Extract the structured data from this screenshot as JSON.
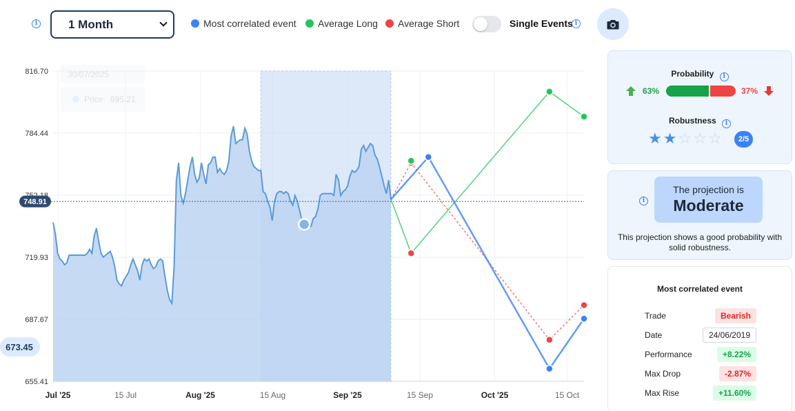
{
  "toolbar": {
    "period": "1 Month",
    "legend": [
      {
        "label": "Most correlated event",
        "color": "#3b82f6"
      },
      {
        "label": "Average Long",
        "color": "#22c55e"
      },
      {
        "label": "Average Short",
        "color": "#ef4444"
      }
    ],
    "single_events_label": "Single Events",
    "single_events_on": false,
    "icons": {
      "info": "info-icon",
      "camera": "camera-icon"
    }
  },
  "chart_data": {
    "type": "line",
    "y_ticks": [
      "816.70",
      "784.44",
      "752.18",
      "719.93",
      "687.67",
      "655.41"
    ],
    "ylim": [
      655.41,
      816.7
    ],
    "x_labels": [
      {
        "label": "Jul '25",
        "major": true
      },
      {
        "label": "15 Jul",
        "major": false
      },
      {
        "label": "Aug '25",
        "major": true
      },
      {
        "label": "15 Aug",
        "major": false
      },
      {
        "label": "Sep '25",
        "major": true
      },
      {
        "label": "15 Sep",
        "major": false
      },
      {
        "label": "Oct '25",
        "major": true
      },
      {
        "label": "15 Oct",
        "major": false
      }
    ],
    "current_price_label": "748.91",
    "current_price": 748.91,
    "hover_price_label": "673.45",
    "tooltip": {
      "date": "30/07/2025",
      "price_label": "Price:",
      "price": "695.21"
    },
    "price_series": {
      "name": "Price",
      "color": "#5b9bd5",
      "points": [
        [
          0,
          738
        ],
        [
          1,
          732
        ],
        [
          2,
          722
        ],
        [
          3,
          719
        ],
        [
          4,
          718
        ],
        [
          5,
          716
        ],
        [
          6,
          717
        ],
        [
          7,
          721
        ],
        [
          8,
          721
        ],
        [
          9,
          721
        ],
        [
          10,
          721
        ],
        [
          11,
          721
        ],
        [
          12,
          721
        ],
        [
          13,
          721
        ],
        [
          14,
          721
        ],
        [
          15,
          722
        ],
        [
          16,
          724
        ],
        [
          17,
          722
        ],
        [
          18,
          731
        ],
        [
          19,
          735
        ],
        [
          20,
          728
        ],
        [
          21,
          722
        ],
        [
          22,
          720
        ],
        [
          23,
          721
        ],
        [
          24,
          722
        ],
        [
          25,
          723
        ],
        [
          26,
          720
        ],
        [
          27,
          715
        ],
        [
          28,
          708
        ],
        [
          29,
          706
        ],
        [
          30,
          705
        ],
        [
          31,
          708
        ],
        [
          32,
          710
        ],
        [
          33,
          712
        ],
        [
          34,
          716
        ],
        [
          35,
          719
        ],
        [
          36,
          716
        ],
        [
          37,
          713
        ],
        [
          38,
          708
        ],
        [
          39,
          716
        ],
        [
          40,
          719
        ],
        [
          41,
          718
        ],
        [
          42,
          719
        ],
        [
          43,
          716
        ],
        [
          44,
          714
        ],
        [
          45,
          715
        ],
        [
          46,
          718
        ],
        [
          47,
          719
        ],
        [
          48,
          718
        ],
        [
          49,
          710
        ],
        [
          50,
          703
        ],
        [
          51,
          698
        ],
        [
          52,
          696
        ],
        [
          53,
          715
        ],
        [
          54,
          760
        ],
        [
          55,
          769
        ],
        [
          56,
          752
        ],
        [
          57,
          748
        ],
        [
          58,
          753
        ],
        [
          59,
          760
        ],
        [
          60,
          767
        ],
        [
          61,
          772
        ],
        [
          62,
          763
        ],
        [
          63,
          759
        ],
        [
          64,
          761
        ],
        [
          65,
          769
        ],
        [
          66,
          763
        ],
        [
          67,
          758
        ],
        [
          68,
          768
        ],
        [
          69,
          769
        ],
        [
          70,
          772
        ],
        [
          71,
          772
        ],
        [
          72,
          764
        ],
        [
          73,
          766
        ],
        [
          74,
          764
        ],
        [
          75,
          763
        ],
        [
          76,
          765
        ],
        [
          77,
          770
        ],
        [
          78,
          783
        ],
        [
          79,
          788
        ],
        [
          80,
          779
        ],
        [
          81,
          780
        ],
        [
          82,
          781
        ],
        [
          83,
          781
        ],
        [
          84,
          787
        ],
        [
          85,
          784
        ],
        [
          86,
          775
        ],
        [
          87,
          770
        ],
        [
          88,
          767
        ],
        [
          89,
          766
        ],
        [
          90,
          765
        ],
        [
          91,
          765
        ],
        [
          92,
          754
        ],
        [
          93,
          753
        ],
        [
          94,
          749
        ],
        [
          95,
          746
        ],
        [
          96,
          739
        ],
        [
          97,
          749
        ],
        [
          98,
          753
        ],
        [
          99,
          754
        ],
        [
          100,
          754
        ],
        [
          101,
          753
        ],
        [
          102,
          754
        ],
        [
          103,
          753
        ],
        [
          104,
          749
        ],
        [
          105,
          747
        ],
        [
          106,
          752
        ],
        [
          107,
          749
        ],
        [
          108,
          744
        ],
        [
          109,
          739
        ],
        [
          110,
          738
        ],
        [
          111,
          737
        ],
        [
          112,
          736
        ],
        [
          113,
          736
        ],
        [
          114,
          740
        ],
        [
          115,
          741
        ],
        [
          116,
          745
        ],
        [
          117,
          752
        ],
        [
          118,
          753
        ],
        [
          119,
          753
        ],
        [
          120,
          753
        ],
        [
          121,
          753
        ],
        [
          122,
          753
        ],
        [
          123,
          752
        ],
        [
          124,
          763
        ],
        [
          125,
          760
        ],
        [
          126,
          752
        ],
        [
          127,
          754
        ],
        [
          128,
          755
        ],
        [
          129,
          757
        ],
        [
          130,
          762
        ],
        [
          131,
          765
        ],
        [
          132,
          764
        ],
        [
          133,
          765
        ],
        [
          134,
          767
        ],
        [
          135,
          776
        ],
        [
          136,
          778
        ],
        [
          137,
          775
        ],
        [
          138,
          777
        ],
        [
          139,
          779
        ],
        [
          140,
          778
        ],
        [
          141,
          773
        ],
        [
          142,
          771
        ],
        [
          143,
          767
        ],
        [
          144,
          762
        ],
        [
          145,
          757
        ],
        [
          146,
          753
        ],
        [
          147,
          760
        ],
        [
          148,
          750
        ]
      ],
      "highlight_point": [
        110,
        737
      ]
    },
    "projection": {
      "most_correlated_event": {
        "color": "#3b82f6",
        "points": [
          [
            148,
            750
          ],
          [
            161,
            772
          ],
          [
            203,
            662
          ],
          [
            215,
            688
          ]
        ]
      },
      "average_long": {
        "color": "#22c55e",
        "points": [
          [
            148,
            750
          ],
          [
            155,
            722
          ],
          [
            203,
            806
          ],
          [
            215,
            793
          ]
        ],
        "marker_start": [
          155,
          770
        ]
      },
      "average_short": {
        "color": "#ef4444",
        "points": [
          [
            148,
            750
          ],
          [
            155,
            769
          ],
          [
            203,
            677
          ],
          [
            215,
            695
          ]
        ],
        "marker_start": [
          155,
          722
        ]
      }
    },
    "highlight_window": [
      91,
      148
    ]
  },
  "probability": {
    "title": "Probability",
    "up_pct": "63%",
    "down_pct": "37%",
    "up_fraction": 0.63
  },
  "robustness": {
    "title": "Robustness",
    "score": "2/5",
    "filled_stars": 2,
    "total_stars": 5
  },
  "projection_summary": {
    "prefix": "The projection is",
    "rating": "Moderate",
    "description": "This projection shows a good probability with solid robustness."
  },
  "event": {
    "title": "Most correlated event",
    "rows": [
      {
        "key": "Trade",
        "value": "Bearish",
        "style": "red"
      },
      {
        "key": "Date",
        "value": "24/06/2019",
        "style": "neutral"
      },
      {
        "key": "Performance",
        "value": "+8.22%",
        "style": "green"
      },
      {
        "key": "Max Drop",
        "value": "-2.87%",
        "style": "red"
      },
      {
        "key": "Max Rise",
        "value": "+11.60%",
        "style": "green"
      }
    ]
  }
}
